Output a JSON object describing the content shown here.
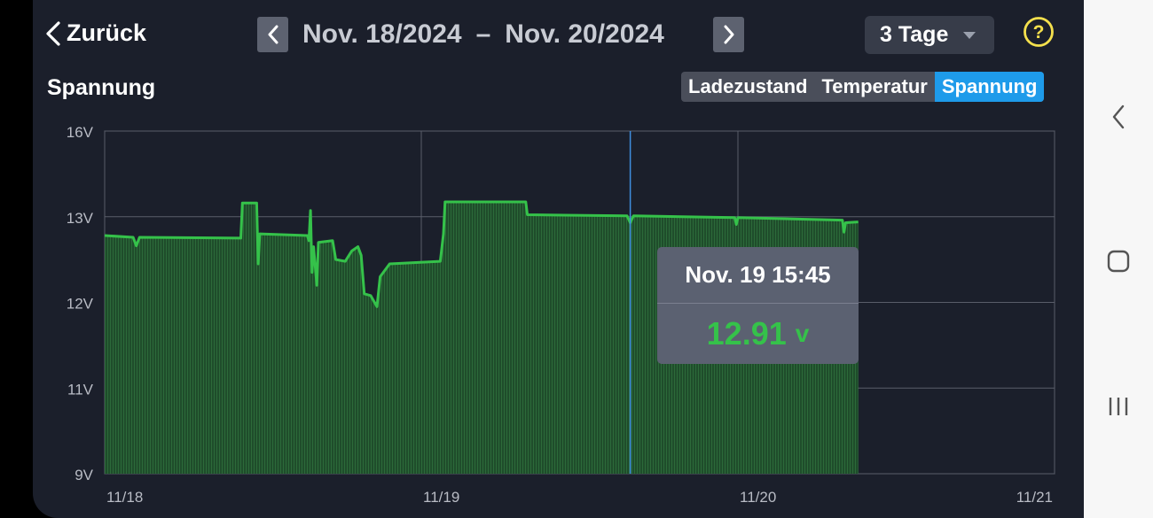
{
  "header": {
    "back_label": "Zurück",
    "date_from": "Nov. 18/2024",
    "date_sep": "–",
    "date_to": "Nov. 20/2024",
    "range_selected": "3 Tage"
  },
  "chart_title": "Spannung",
  "tabs": [
    {
      "label": "Ladezustand",
      "active": false
    },
    {
      "label": "Temperatur",
      "active": false
    },
    {
      "label": "Spannung",
      "active": true
    }
  ],
  "tooltip": {
    "time": "Nov. 19 15:45",
    "value": "12.91",
    "unit": "v"
  },
  "colors": {
    "background": "#1b1f2b",
    "line": "#35c24a",
    "fill": "#1f4d2b",
    "cursor": "#3f8fe0",
    "active_tab": "#1e9bea",
    "help_icon": "#f4e04d"
  },
  "chart_data": {
    "type": "area",
    "title": "Spannung",
    "y_ticks": [
      "16V",
      "13V",
      "12V",
      "11V",
      "9V"
    ],
    "x_ticks": [
      "11/18",
      "11/19",
      "11/20",
      "11/21"
    ],
    "x_unit": "days since 11/18 00:00",
    "cursor_x": 1.66,
    "series": [
      {
        "name": "Spannung",
        "points": [
          [
            0.0,
            12.78
          ],
          [
            0.09,
            12.76
          ],
          [
            0.1,
            12.66
          ],
          [
            0.11,
            12.76
          ],
          [
            0.43,
            12.75
          ],
          [
            0.435,
            13.48
          ],
          [
            0.48,
            13.48
          ],
          [
            0.485,
            12.45
          ],
          [
            0.49,
            12.8
          ],
          [
            0.64,
            12.78
          ],
          [
            0.645,
            12.72
          ],
          [
            0.65,
            13.22
          ],
          [
            0.655,
            12.35
          ],
          [
            0.66,
            12.65
          ],
          [
            0.67,
            12.2
          ],
          [
            0.675,
            12.7
          ],
          [
            0.72,
            12.72
          ],
          [
            0.73,
            12.5
          ],
          [
            0.76,
            12.48
          ],
          [
            0.78,
            12.6
          ],
          [
            0.8,
            12.65
          ],
          [
            0.81,
            12.55
          ],
          [
            0.82,
            12.1
          ],
          [
            0.84,
            12.08
          ],
          [
            0.86,
            11.95
          ],
          [
            0.87,
            12.3
          ],
          [
            0.9,
            12.45
          ],
          [
            1.06,
            12.48
          ],
          [
            1.07,
            12.8
          ],
          [
            1.075,
            13.52
          ],
          [
            1.33,
            13.52
          ],
          [
            1.335,
            13.07
          ],
          [
            1.65,
            13.03
          ],
          [
            1.66,
            12.93
          ],
          [
            1.67,
            13.03
          ],
          [
            1.99,
            12.99
          ],
          [
            1.995,
            12.91
          ],
          [
            2.0,
            12.99
          ],
          [
            2.33,
            12.96
          ],
          [
            2.335,
            12.82
          ],
          [
            2.34,
            12.93
          ],
          [
            2.38,
            12.94
          ]
        ]
      }
    ]
  }
}
